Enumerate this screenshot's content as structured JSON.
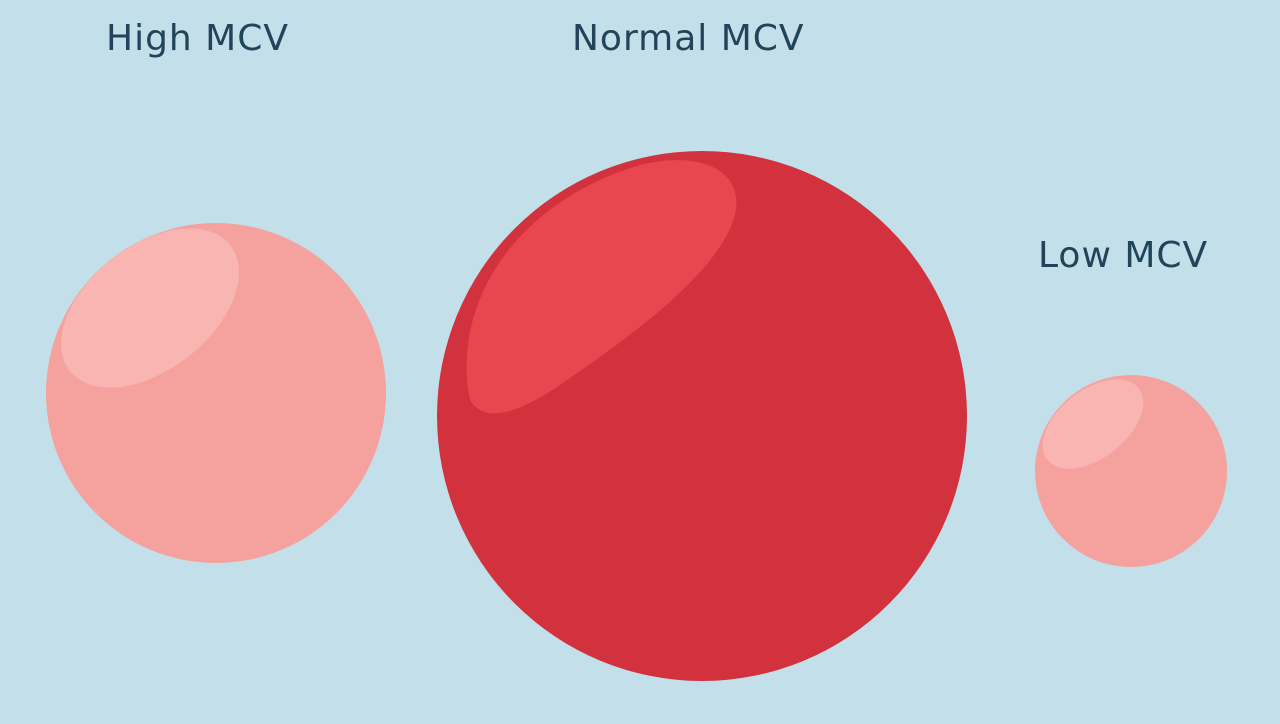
{
  "labels": {
    "high": "High MCV",
    "normal": "Normal MCV",
    "low": "Low MCV"
  },
  "colors": {
    "background": "#c2dfea",
    "label_text": "#22445a",
    "pale_cell": "#f5a19d",
    "pale_cell_highlight": "#f9b5b2",
    "normal_cell": "#d2323d",
    "normal_cell_highlight": "#e9474f"
  }
}
